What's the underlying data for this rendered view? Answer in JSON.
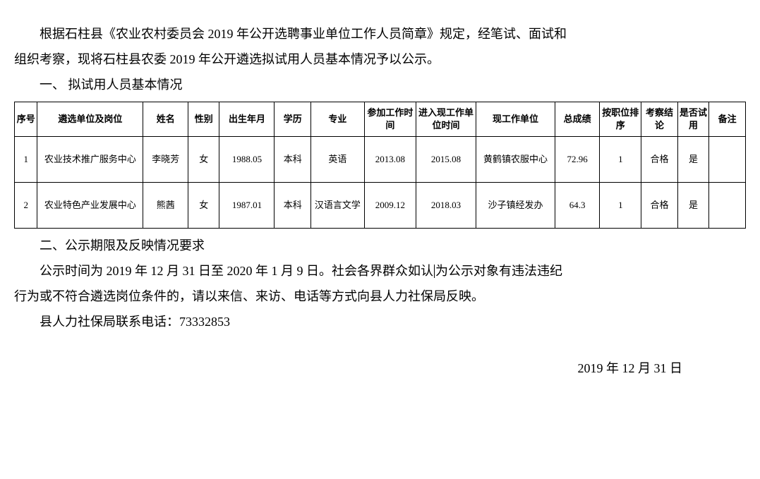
{
  "intro": {
    "p1_a": "根据石柱县《农业农村委员会 2019 年公开选聘事业单位工作人员简章》规定，经笔试、面试和",
    "p1_b": "组织考察，现将石柱县农委 2019 年公开遴选拟试用人员基本情况予以公示。"
  },
  "section1_heading": "一、 拟试用人员基本情况",
  "table": {
    "headers": {
      "seq": "序号",
      "unit": "遴选单位及岗位",
      "name": "姓名",
      "sex": "性别",
      "birth": "出生年月",
      "edu": "学历",
      "major": "专业",
      "join": "参加工作时间",
      "enter": "进入现工作单位时间",
      "work": "现工作单位",
      "score": "总成绩",
      "rank": "按职位排序",
      "exam": "考察结论",
      "trial": "是否试用",
      "remark": "备注"
    },
    "rows": [
      {
        "seq": "1",
        "unit": "农业技术推广服务中心",
        "name": "李晓芳",
        "sex": "女",
        "birth": "1988.05",
        "edu": "本科",
        "major": "英语",
        "join": "2013.08",
        "enter": "2015.08",
        "work": "黄鹤镇农服中心",
        "score": "72.96",
        "rank": "1",
        "exam": "合格",
        "trial": "是",
        "remark": ""
      },
      {
        "seq": "2",
        "unit": "农业特色产业发展中心",
        "name": "熊茜",
        "sex": "女",
        "birth": "1987.01",
        "edu": "本科",
        "major": "汉语言文学",
        "join": "2009.12",
        "enter": "2018.03",
        "work": "沙子镇经发办",
        "score": "64.3",
        "rank": "1",
        "exam": "合格",
        "trial": "是",
        "remark": ""
      }
    ]
  },
  "section2_heading": "二、公示期限及反映情况要求",
  "period": {
    "p1_a": "公示时间为 2019 年 12 月 31 日至 2020 年 1 月 9 日。社会各界群众如认",
    "p1_b": "为公示对象有违法违纪",
    "p2": "行为或不符合遴选岗位条件的，请以来信、来访、电话等方式向县人力社保局反映。"
  },
  "contact": "县人力社保局联系电话：73332853",
  "date": "2019 年 12 月 31 日"
}
